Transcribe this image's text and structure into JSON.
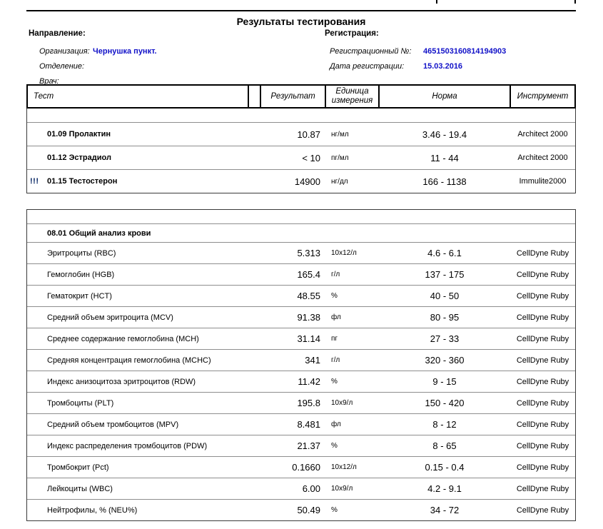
{
  "page": {
    "title": "Результаты тестирования"
  },
  "referral": {
    "section_label": "Направление:",
    "fields": [
      {
        "label": "Организация:",
        "value": "Чернушка пункт."
      },
      {
        "label": "Отделение:",
        "value": ""
      },
      {
        "label": "Врач:",
        "value": ""
      }
    ]
  },
  "registration": {
    "section_label": "Регистрация:",
    "fields": [
      {
        "label": "Регистрационный №:",
        "value": "4651503160814194903"
      },
      {
        "label": "Дата регистрации:",
        "value": "15.03.2016"
      }
    ]
  },
  "table": {
    "columns": [
      "Тест",
      "Результат",
      "Единица измерения",
      "Норма",
      "Инструмент"
    ],
    "blocks": [
      {
        "group_label": "",
        "rows": [
          {
            "flag": "",
            "test": "01.09 Пролактин",
            "result": "10.87",
            "unit": "нг/мл",
            "norm": "3.46 - 19.4",
            "instrument": "Architect 2000"
          },
          {
            "flag": "",
            "test": "01.12 Эстрадиол",
            "result": "< 10",
            "unit": "пг/мл",
            "norm": "11 - 44",
            "instrument": "Architect 2000"
          },
          {
            "flag": "!!!",
            "test": "01.15 Тестостерон",
            "result": "14900",
            "unit": "нг/дл",
            "norm": "166 - 1138",
            "instrument": "Immulite2000"
          }
        ]
      },
      {
        "group_label": "08.01 Общий анализ крови",
        "rows": [
          {
            "flag": "",
            "test": "Эритроциты (RBC)",
            "result": "5.313",
            "unit": "10x12/л",
            "norm": "4.6 - 6.1",
            "instrument": "CellDyne Ruby"
          },
          {
            "flag": "",
            "test": "Гемоглобин (HGB)",
            "result": "165.4",
            "unit": "г/л",
            "norm": "137 - 175",
            "instrument": "CellDyne Ruby"
          },
          {
            "flag": "",
            "test": "Гематокрит (HCT)",
            "result": "48.55",
            "unit": "%",
            "norm": "40 - 50",
            "instrument": "CellDyne Ruby"
          },
          {
            "flag": "",
            "test": "Средний объем эритроцита (MCV)",
            "result": "91.38",
            "unit": "фл",
            "norm": "80 - 95",
            "instrument": "CellDyne Ruby"
          },
          {
            "flag": "",
            "test": "Среднее содержание гемоглобина (MCH)",
            "result": "31.14",
            "unit": "пг",
            "norm": "27 - 33",
            "instrument": "CellDyne Ruby"
          },
          {
            "flag": "",
            "test": "Средняя концентрация гемоглобина (MCHC)",
            "result": "341",
            "unit": "г/л",
            "norm": "320 - 360",
            "instrument": "CellDyne Ruby"
          },
          {
            "flag": "",
            "test": "Индекс анизоцитоза эритроцитов (RDW)",
            "result": "11.42",
            "unit": "%",
            "norm": "9 - 15",
            "instrument": "CellDyne Ruby"
          },
          {
            "flag": "",
            "test": "Тромбоциты (PLT)",
            "result": "195.8",
            "unit": "10x9/л",
            "norm": "150 - 420",
            "instrument": "CellDyne Ruby"
          },
          {
            "flag": "",
            "test": "Средний объем тромбоцитов (MPV)",
            "result": "8.481",
            "unit": "фл",
            "norm": "8 - 12",
            "instrument": "CellDyne Ruby"
          },
          {
            "flag": "",
            "test": "Индекс распределения тромбоцитов (PDW)",
            "result": "21.37",
            "unit": "%",
            "norm": "8 - 65",
            "instrument": "CellDyne Ruby"
          },
          {
            "flag": "",
            "test": "Тромбокрит (Pct)",
            "result": "0.1660",
            "unit": "10x12/л",
            "norm": "0.15 - 0.4",
            "instrument": "CellDyne Ruby"
          },
          {
            "flag": "",
            "test": "Лейкоциты (WBC)",
            "result": "6.00",
            "unit": "10x9/л",
            "norm": "4.2 - 9.1",
            "instrument": "CellDyne Ruby"
          },
          {
            "flag": "",
            "test": "Нейтрофилы, % (NEU%)",
            "result": "50.49",
            "unit": "%",
            "norm": "34 - 72",
            "instrument": "CellDyne Ruby"
          }
        ]
      }
    ]
  },
  "colors": {
    "value_blue": "#1212c8",
    "flag_navy": "#002060"
  }
}
